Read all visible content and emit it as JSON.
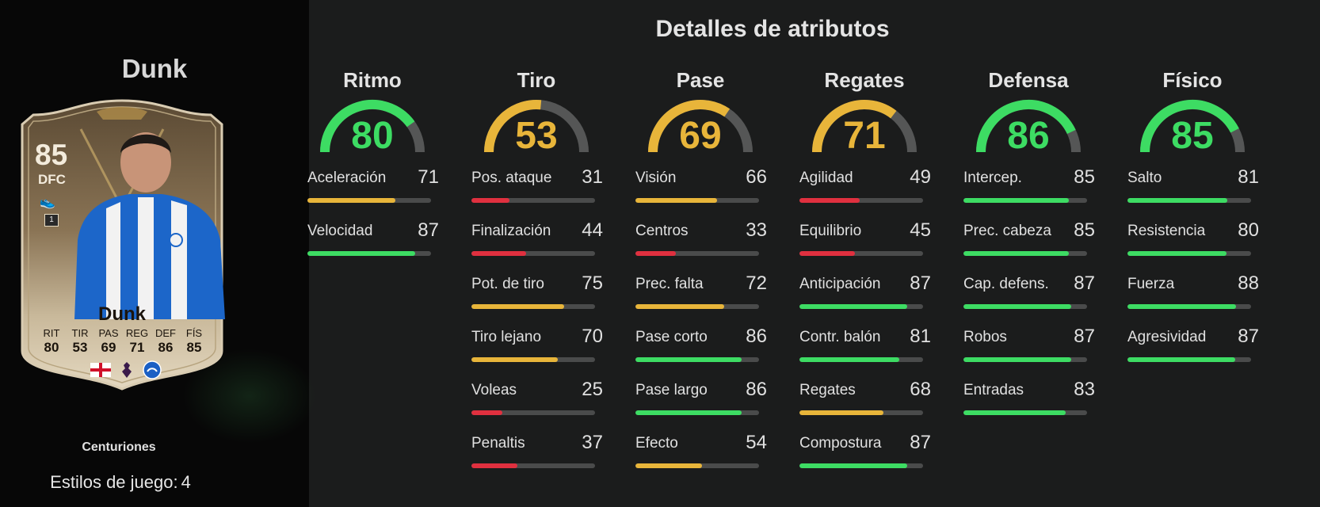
{
  "player": {
    "name": "Dunk",
    "card": {
      "rating": "85",
      "position": "DFC",
      "name": "Dunk",
      "stats": [
        {
          "label": "RIT",
          "value": "80"
        },
        {
          "label": "TIR",
          "value": "53"
        },
        {
          "label": "PAS",
          "value": "69"
        },
        {
          "label": "REG",
          "value": "71"
        },
        {
          "label": "DEF",
          "value": "86"
        },
        {
          "label": "FÍS",
          "value": "85"
        }
      ],
      "icons": [
        "england-flag-icon",
        "premier-league-icon",
        "brighton-crest-icon"
      ]
    },
    "promo": "Centuriones",
    "playstyles_label": "Estilos de juego:",
    "playstyles_count": "4"
  },
  "colors": {
    "green": "#3ddc63",
    "yellow": "#e8b53a",
    "red": "#e0303f",
    "gauge_track": "#555656"
  },
  "attributes": {
    "title": "Detalles de atributos",
    "groups": [
      {
        "name": "Ritmo",
        "value": 80,
        "stats": [
          {
            "name": "Aceleración",
            "value": 71
          },
          {
            "name": "Velocidad",
            "value": 87
          }
        ]
      },
      {
        "name": "Tiro",
        "value": 53,
        "stats": [
          {
            "name": "Pos. ataque",
            "value": 31
          },
          {
            "name": "Finalización",
            "value": 44
          },
          {
            "name": "Pot. de tiro",
            "value": 75
          },
          {
            "name": "Tiro lejano",
            "value": 70
          },
          {
            "name": "Voleas",
            "value": 25
          },
          {
            "name": "Penaltis",
            "value": 37
          }
        ]
      },
      {
        "name": "Pase",
        "value": 69,
        "stats": [
          {
            "name": "Visión",
            "value": 66
          },
          {
            "name": "Centros",
            "value": 33
          },
          {
            "name": "Prec. falta",
            "value": 72
          },
          {
            "name": "Pase corto",
            "value": 86
          },
          {
            "name": "Pase largo",
            "value": 86
          },
          {
            "name": "Efecto",
            "value": 54
          }
        ]
      },
      {
        "name": "Regates",
        "value": 71,
        "stats": [
          {
            "name": "Agilidad",
            "value": 49
          },
          {
            "name": "Equilibrio",
            "value": 45
          },
          {
            "name": "Anticipación",
            "value": 87
          },
          {
            "name": "Contr. balón",
            "value": 81
          },
          {
            "name": "Regates",
            "value": 68
          },
          {
            "name": "Compostura",
            "value": 87
          }
        ]
      },
      {
        "name": "Defensa",
        "value": 86,
        "stats": [
          {
            "name": "Intercep.",
            "value": 85
          },
          {
            "name": "Prec. cabeza",
            "value": 85
          },
          {
            "name": "Cap. defens.",
            "value": 87
          },
          {
            "name": "Robos",
            "value": 87
          },
          {
            "name": "Entradas",
            "value": 83
          }
        ]
      },
      {
        "name": "Físico",
        "value": 85,
        "stats": [
          {
            "name": "Salto",
            "value": 81
          },
          {
            "name": "Resistencia",
            "value": 80
          },
          {
            "name": "Fuerza",
            "value": 88
          },
          {
            "name": "Agresividad",
            "value": 87
          }
        ]
      }
    ]
  }
}
